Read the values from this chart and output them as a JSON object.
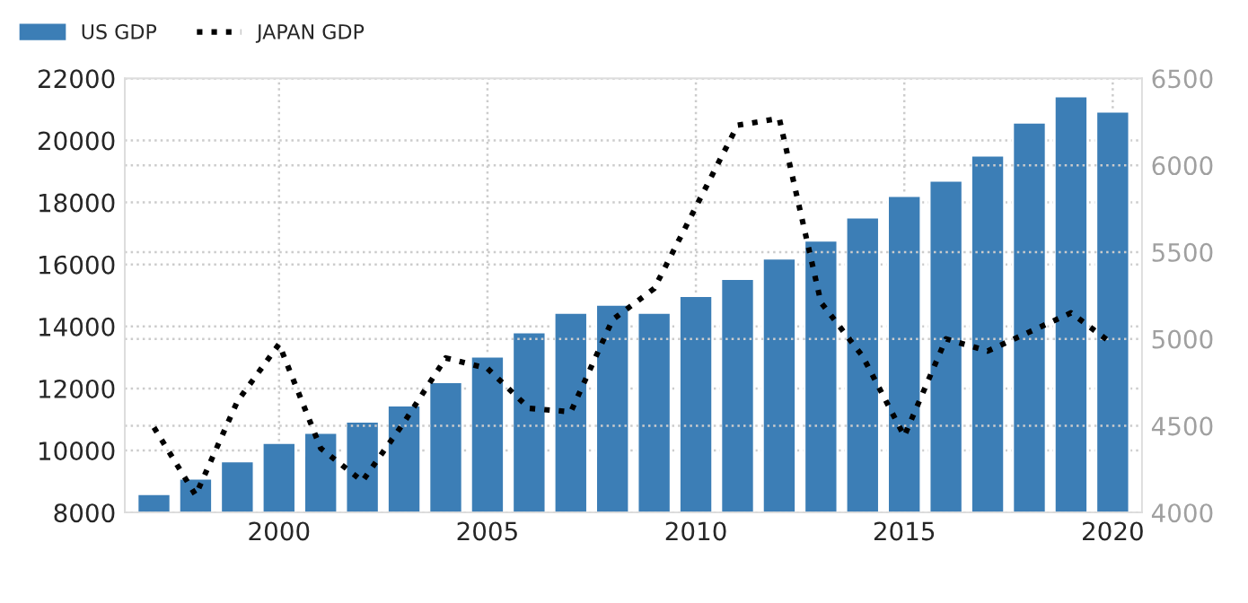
{
  "chart_data": {
    "type": "bar",
    "x": [
      1997,
      1998,
      1999,
      2000,
      2001,
      2002,
      2003,
      2004,
      2005,
      2006,
      2007,
      2008,
      2009,
      2010,
      2011,
      2012,
      2013,
      2014,
      2015,
      2016,
      2017,
      2018,
      2019,
      2020
    ],
    "series": [
      {
        "name": "US GDP",
        "color": "#3c7eb6",
        "values": [
          8600,
          9100,
          9660,
          10250,
          10580,
          10940,
          11460,
          12210,
          13040,
          13820,
          14450,
          14710,
          14450,
          14990,
          15540,
          16200,
          16780,
          17520,
          18220,
          18710,
          19520,
          20580,
          21430,
          20940
        ]
      },
      {
        "name": "JAPAN GDP",
        "type": "line",
        "axis": "y2",
        "color": "#000000",
        "line_style": "dotted",
        "values": [
          4490,
          4100,
          4640,
          4970,
          4370,
          4180,
          4520,
          4890,
          4830,
          4600,
          4580,
          5110,
          5290,
          5760,
          6230,
          6270,
          5210,
          4900,
          4440,
          5000,
          4930,
          5040,
          5150,
          4970
        ]
      }
    ],
    "xlim": [
      1996.3,
      2020.7
    ],
    "xticks": [
      2000,
      2005,
      2010,
      2015,
      2020
    ],
    "ylim": [
      8000,
      22000
    ],
    "yticks": [
      8000,
      10000,
      12000,
      14000,
      16000,
      18000,
      20000,
      22000
    ],
    "y2lim": [
      4000,
      6500
    ],
    "y2ticks": [
      4000,
      4500,
      5000,
      5500,
      6000,
      6500
    ],
    "grid": true,
    "legend": "top left"
  }
}
